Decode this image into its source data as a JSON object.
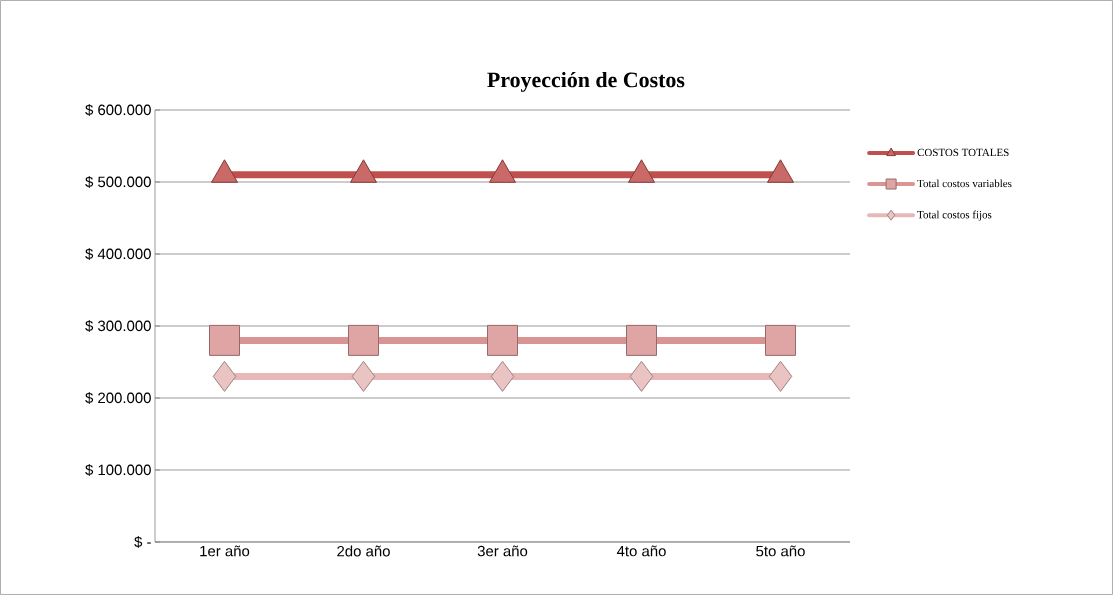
{
  "chart_data": {
    "type": "line",
    "title": "Proyección de Costos",
    "categories": [
      "1er año",
      "2do año",
      "3er año",
      "4to año",
      "5to año"
    ],
    "series": [
      {
        "name": "COSTOS TOTALES",
        "color": "#c0504d",
        "marker": "triangle",
        "values": [
          510000,
          510000,
          510000,
          510000,
          510000
        ]
      },
      {
        "name": "Total costos variables",
        "color": "#d99594",
        "marker": "square",
        "values": [
          280000,
          280000,
          280000,
          280000,
          280000
        ]
      },
      {
        "name": "Total costos fijos",
        "color": "#e6b9b8",
        "marker": "diamond",
        "values": [
          230000,
          230000,
          230000,
          230000,
          230000
        ]
      }
    ],
    "ylim": [
      0,
      600000
    ],
    "yticks": [
      {
        "value": 0,
        "label": "$ -"
      },
      {
        "value": 100000,
        "label": "$ 100.000"
      },
      {
        "value": 200000,
        "label": "$ 200.000"
      },
      {
        "value": 300000,
        "label": "$ 300.000"
      },
      {
        "value": 400000,
        "label": "$ 400.000"
      },
      {
        "value": 500000,
        "label": "$ 500.000"
      },
      {
        "value": 600000,
        "label": "$ 600.000"
      }
    ],
    "grid": "y",
    "legend": "right",
    "line_style": "solid"
  }
}
